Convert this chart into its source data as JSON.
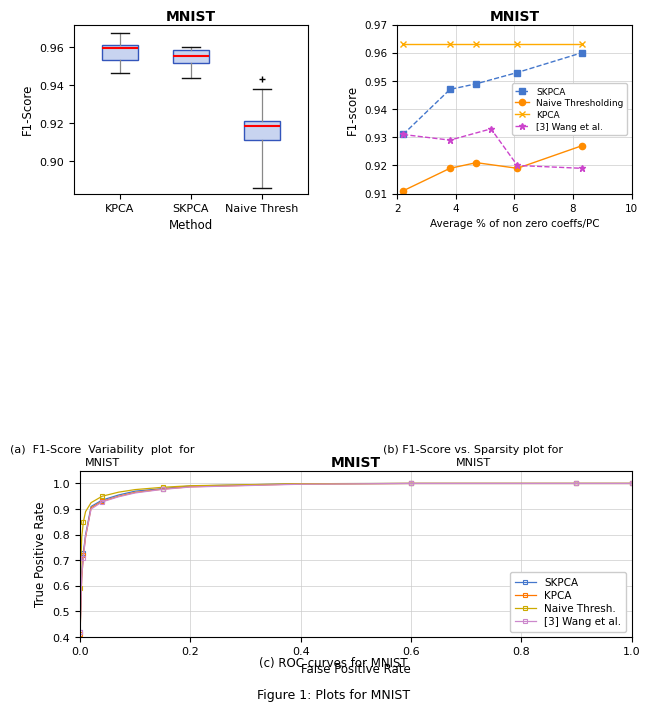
{
  "title": "MNIST",
  "fig_caption": "Figure 1: Plots for MNIST",
  "box_categories": [
    "KPCA",
    "SKPCA",
    "Naive Thresh"
  ],
  "box_xlabel": "Method",
  "box_ylabel": "F1-Score",
  "box_caption_line1": "(a)  F1-Score  Variability  plot  for",
  "box_caption_line2": "MNIST",
  "box_data": {
    "KPCA": {
      "median": 0.9595,
      "q1": 0.9535,
      "q3": 0.961,
      "whisker_low": 0.9465,
      "whisker_high": 0.9675,
      "outliers": []
    },
    "SKPCA": {
      "median": 0.9555,
      "q1": 0.952,
      "q3": 0.9585,
      "whisker_low": 0.944,
      "whisker_high": 0.96,
      "outliers": []
    },
    "Naive Thresh": {
      "median": 0.9185,
      "q1": 0.9115,
      "q3": 0.9215,
      "whisker_low": 0.886,
      "whisker_high": 0.938,
      "outliers": [
        0.9435
      ]
    }
  },
  "line_title": "MNIST",
  "line_xlabel": "Average % of non zero coeffs/PC",
  "line_ylabel": "F1-score",
  "line_caption_line1": "(b) F1-Score vs. Sparsity plot for",
  "line_caption_line2": "MNIST",
  "line_xlim": [
    2,
    10
  ],
  "line_ylim": [
    0.91,
    0.97
  ],
  "line_yticks": [
    0.91,
    0.92,
    0.93,
    0.94,
    0.95,
    0.96,
    0.97
  ],
  "line_xticks": [
    2,
    4,
    6,
    8,
    10
  ],
  "line_series": {
    "SKPCA": {
      "x": [
        2.2,
        3.8,
        4.7,
        6.1,
        8.3
      ],
      "y": [
        0.931,
        0.947,
        0.949,
        0.953,
        0.96
      ],
      "color": "#4477CC",
      "marker": "s",
      "linestyle": "--"
    },
    "Naive Thresholding": {
      "x": [
        2.2,
        3.8,
        4.7,
        6.1,
        8.3
      ],
      "y": [
        0.911,
        0.919,
        0.921,
        0.919,
        0.927
      ],
      "color": "#FF8C00",
      "marker": "o",
      "linestyle": "-"
    },
    "KPCA": {
      "x": [
        2.2,
        3.8,
        4.7,
        6.1,
        8.3
      ],
      "y": [
        0.963,
        0.963,
        0.963,
        0.963,
        0.963
      ],
      "color": "#FFAA00",
      "marker": "x",
      "linestyle": "-"
    },
    "[3] Wang et al.": {
      "x": [
        2.2,
        3.8,
        5.2,
        6.1,
        8.3
      ],
      "y": [
        0.931,
        0.929,
        0.933,
        0.92,
        0.919
      ],
      "color": "#CC44CC",
      "marker": "*",
      "linestyle": "--"
    }
  },
  "roc_title": "MNIST",
  "roc_xlabel": "False Positive Rate",
  "roc_ylabel": "True Positive Rate",
  "roc_caption": "(c) ROC curves for MNIST",
  "roc_series": {
    "SKPCA": {
      "fpr": [
        0.0,
        0.003,
        0.006,
        0.01,
        0.02,
        0.04,
        0.07,
        0.1,
        0.15,
        0.2,
        0.4,
        0.6,
        0.8,
        0.9,
        1.0
      ],
      "tpr": [
        0.42,
        0.65,
        0.73,
        0.8,
        0.91,
        0.935,
        0.955,
        0.97,
        0.98,
        0.99,
        0.999,
        1.0,
        1.0,
        1.0,
        1.0
      ],
      "color": "#4477CC",
      "marker": "s"
    },
    "KPCA": {
      "fpr": [
        0.0,
        0.003,
        0.006,
        0.01,
        0.02,
        0.04,
        0.07,
        0.1,
        0.15,
        0.2,
        0.4,
        0.6,
        0.8,
        0.9,
        1.0
      ],
      "tpr": [
        0.41,
        0.63,
        0.72,
        0.79,
        0.905,
        0.93,
        0.95,
        0.965,
        0.978,
        0.987,
        0.998,
        1.0,
        1.0,
        1.0,
        1.0
      ],
      "color": "#FF7700",
      "marker": "s"
    },
    "Naive Thresh.": {
      "fpr": [
        0.0,
        0.003,
        0.006,
        0.01,
        0.02,
        0.04,
        0.07,
        0.1,
        0.15,
        0.2,
        0.4,
        0.6,
        0.8,
        0.9,
        1.0
      ],
      "tpr": [
        0.59,
        0.79,
        0.85,
        0.89,
        0.925,
        0.95,
        0.966,
        0.976,
        0.985,
        0.991,
        0.999,
        1.0,
        1.0,
        1.0,
        1.0
      ],
      "color": "#CCAA00",
      "marker": "s"
    },
    "[3] Wang et al.": {
      "fpr": [
        0.0,
        0.003,
        0.006,
        0.01,
        0.02,
        0.04,
        0.07,
        0.1,
        0.15,
        0.2,
        0.4,
        0.6,
        0.8,
        0.9,
        1.0
      ],
      "tpr": [
        0.42,
        0.64,
        0.71,
        0.795,
        0.9,
        0.928,
        0.948,
        0.963,
        0.977,
        0.986,
        0.997,
        1.0,
        1.0,
        1.0,
        1.0
      ],
      "color": "#CC88CC",
      "marker": "s"
    }
  },
  "roc_xlim": [
    0,
    1
  ],
  "roc_ylim": [
    0.4,
    1.05
  ],
  "roc_yticks": [
    0.4,
    0.5,
    0.6,
    0.7,
    0.8,
    0.9,
    1.0
  ],
  "roc_xticks": [
    0,
    0.2,
    0.4,
    0.6,
    0.8,
    1.0
  ]
}
